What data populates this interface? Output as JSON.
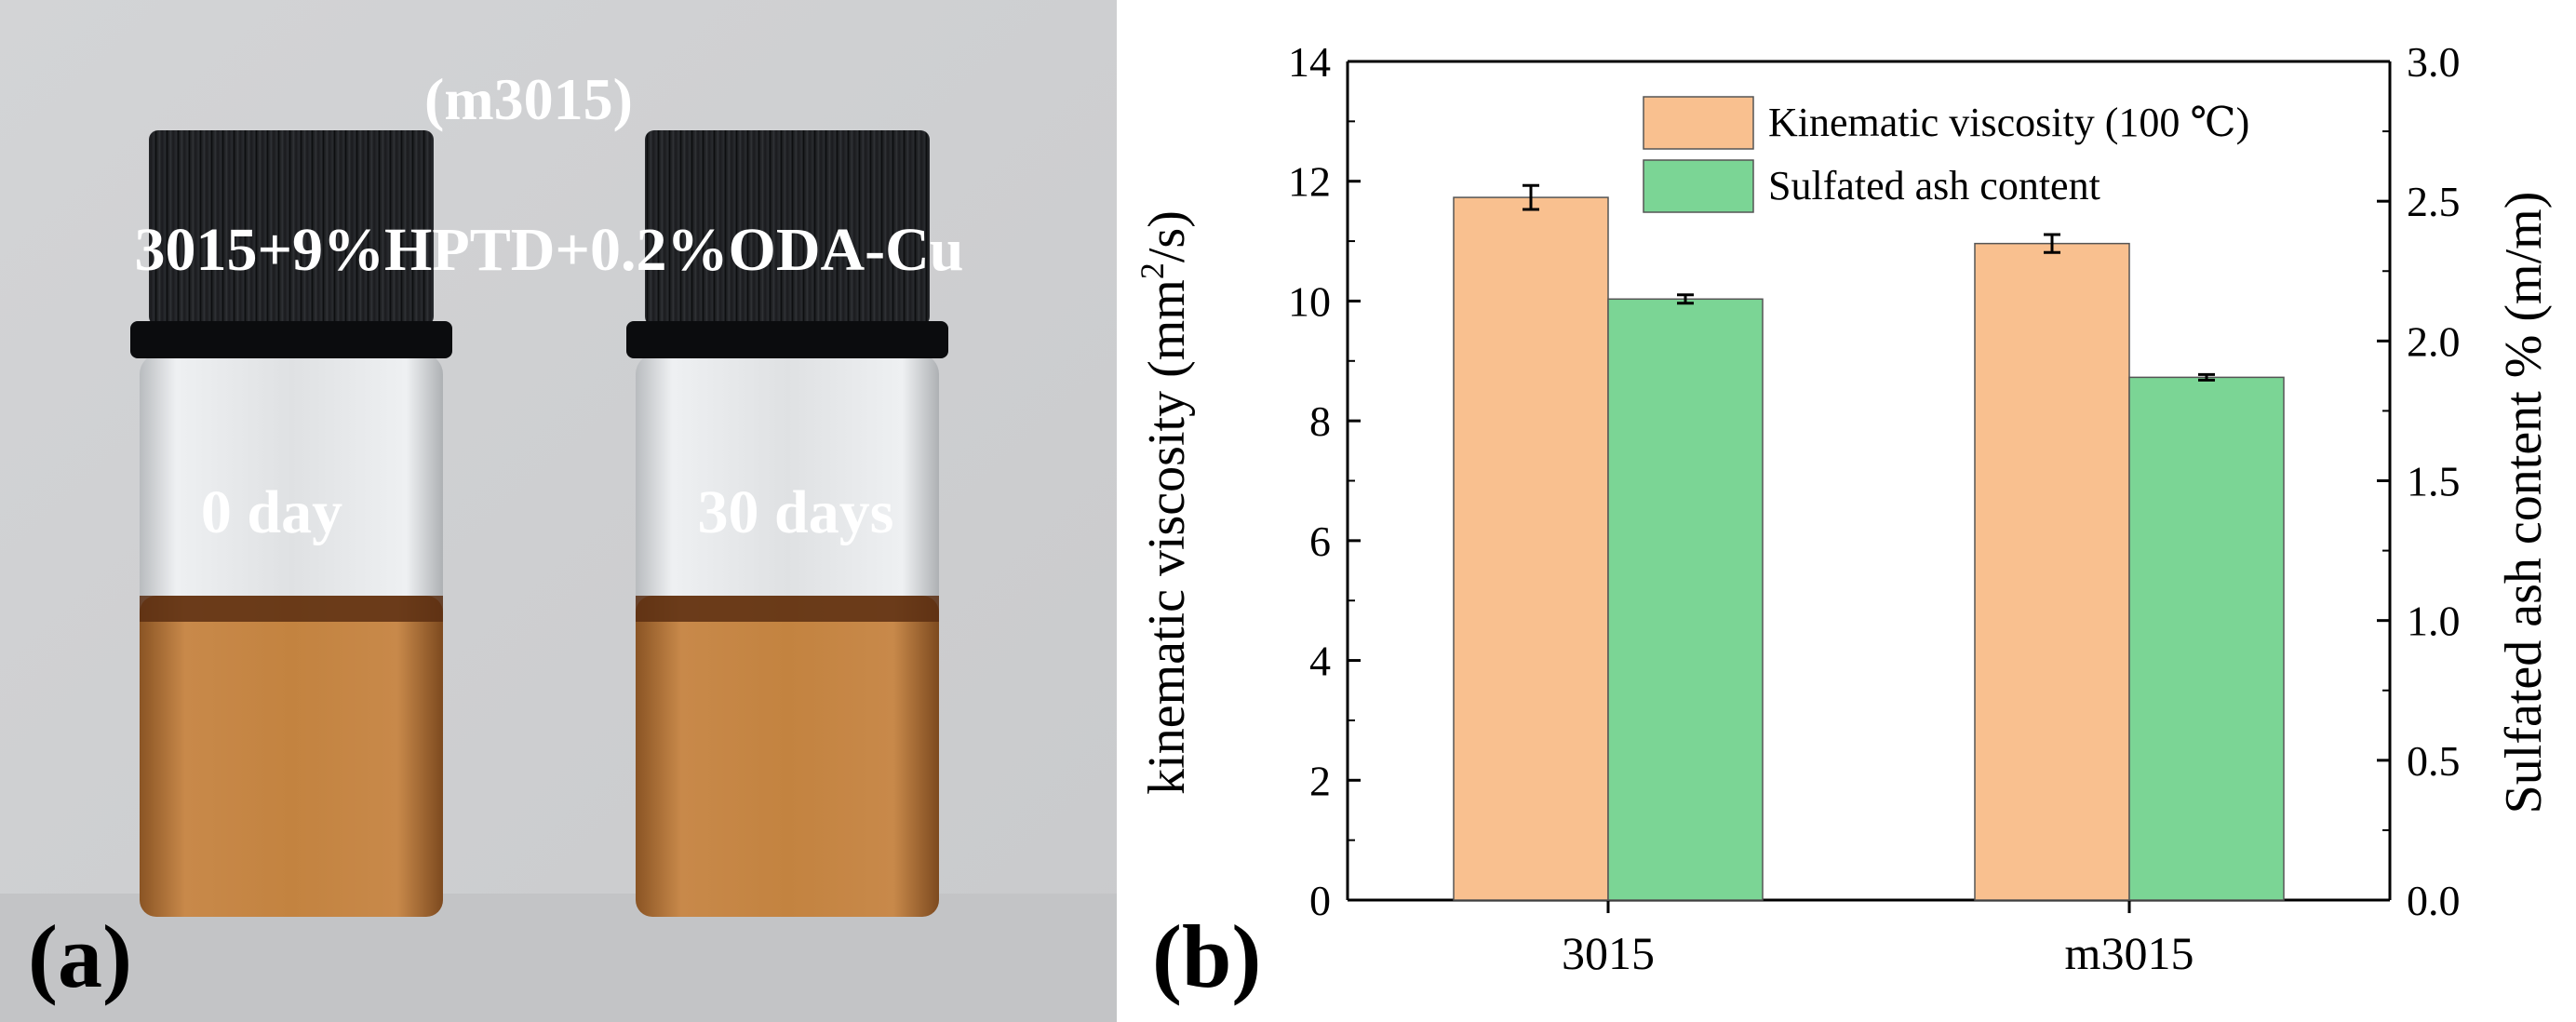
{
  "panel_a": {
    "label": "(a)",
    "sample_sup": "(m3015)",
    "sample_formula": "3015+9%HPTD+0.2%ODA-Cu",
    "vials": [
      {
        "caption": "0 day"
      },
      {
        "caption": "30 days"
      }
    ],
    "colors": {
      "background": "#cfd0d2",
      "cap": "#101114",
      "liquid": "#c07f3f",
      "glass": "#e4e6e8"
    }
  },
  "panel_b": {
    "label": "(b)"
  },
  "chart_data": {
    "type": "bar",
    "categories": [
      "3015",
      "m3015"
    ],
    "series": [
      {
        "name": "Kinematic viscosity (100 ℃)",
        "axis": "left",
        "color": "#f9c08f",
        "values": [
          11.73,
          10.96
        ],
        "errors": [
          0.2,
          0.15
        ]
      },
      {
        "name": "Sulfated ash content",
        "axis": "right",
        "color": "#7bd595",
        "values": [
          2.15,
          1.87
        ],
        "errors": [
          0.015,
          0.01
        ]
      }
    ],
    "ylabel_left_prefix": "kinematic viscosity (mm",
    "ylabel_left_sup": "2",
    "ylabel_left_suffix": "/s)",
    "ylabel_right": "Sulfated ash content % (m/m)",
    "ylim_left": [
      0,
      14
    ],
    "ylim_right": [
      0,
      3.0
    ],
    "yticks_left": [
      "0",
      "2",
      "4",
      "6",
      "8",
      "10",
      "12",
      "14"
    ],
    "yticks_right": [
      "0.0",
      "0.5",
      "1.0",
      "1.5",
      "2.0",
      "2.5",
      "3.0"
    ],
    "legend_position": "top-right"
  }
}
